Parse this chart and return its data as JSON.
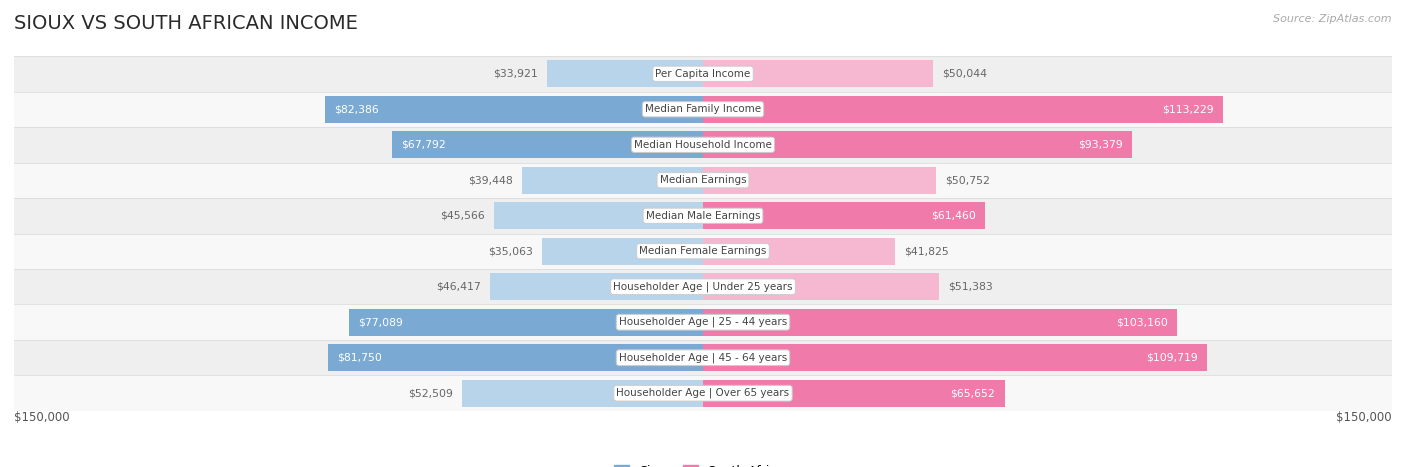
{
  "title": "SIOUX VS SOUTH AFRICAN INCOME",
  "source": "Source: ZipAtlas.com",
  "categories": [
    "Per Capita Income",
    "Median Family Income",
    "Median Household Income",
    "Median Earnings",
    "Median Male Earnings",
    "Median Female Earnings",
    "Householder Age | Under 25 years",
    "Householder Age | 25 - 44 years",
    "Householder Age | 45 - 64 years",
    "Householder Age | Over 65 years"
  ],
  "sioux_values": [
    33921,
    82386,
    67792,
    39448,
    45566,
    35063,
    46417,
    77089,
    81750,
    52509
  ],
  "south_african_values": [
    50044,
    113229,
    93379,
    50752,
    61460,
    41825,
    51383,
    103160,
    109719,
    65652
  ],
  "sioux_labels": [
    "$33,921",
    "$82,386",
    "$67,792",
    "$39,448",
    "$45,566",
    "$35,063",
    "$46,417",
    "$77,089",
    "$81,750",
    "$52,509"
  ],
  "sa_labels": [
    "$50,044",
    "$113,229",
    "$93,379",
    "$50,752",
    "$61,460",
    "$41,825",
    "$51,383",
    "$103,160",
    "$109,719",
    "$65,652"
  ],
  "sioux_color_strong": "#7aaad4",
  "sioux_color_light": "#b8d4ea",
  "sa_color_strong": "#f07aaa",
  "sa_color_light": "#f5b8d0",
  "max_value": 150000,
  "row_bg_even": "#efefef",
  "row_bg_odd": "#f8f8f8",
  "label_color_dark": "#666666",
  "label_color_white": "#ffffff",
  "axis_label_left": "$150,000",
  "axis_label_right": "$150,000",
  "legend_sioux": "Sioux",
  "legend_sa": "South African",
  "title_color": "#2a2a2a",
  "source_color": "#aaaaaa",
  "sioux_threshold": 60000,
  "sa_threshold": 60000
}
